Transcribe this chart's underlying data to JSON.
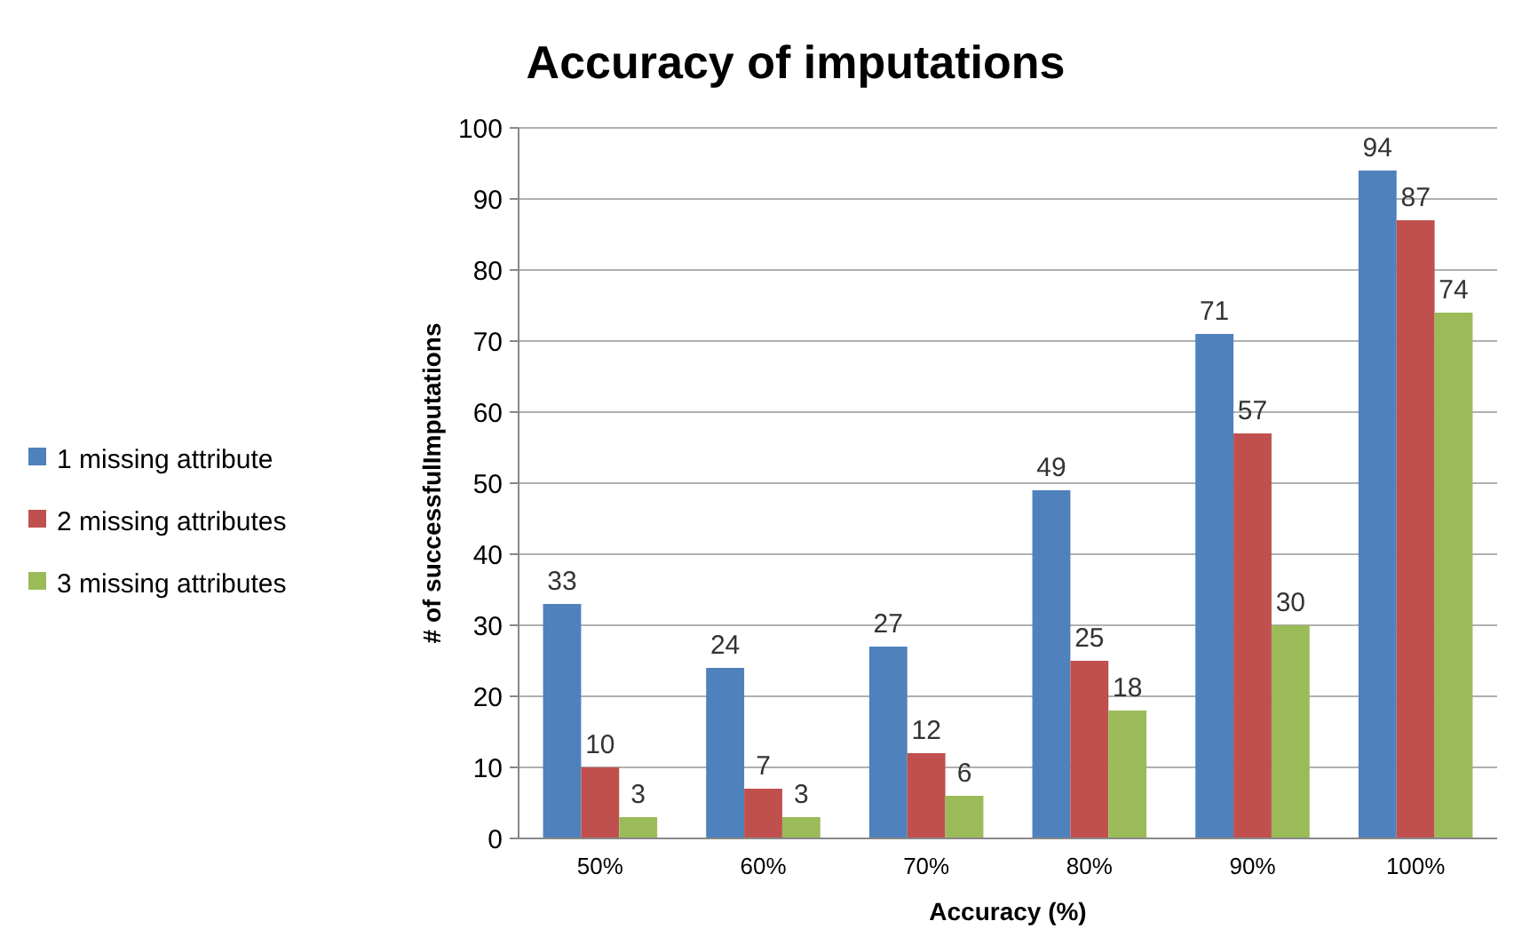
{
  "chart_data": {
    "type": "bar",
    "title": "Accuracy of imputations",
    "xlabel": "Accuracy  (%)",
    "ylabel": "# of successfulImputations",
    "categories": [
      "50%",
      "60%",
      "70%",
      "80%",
      "90%",
      "100%"
    ],
    "series": [
      {
        "name": "1 missing attribute",
        "color": "#4f81bd",
        "values": [
          33,
          24,
          27,
          49,
          71,
          94
        ]
      },
      {
        "name": "2 missing attributes",
        "color": "#c0504d",
        "values": [
          10,
          7,
          12,
          25,
          57,
          87
        ]
      },
      {
        "name": "3 missing attributes",
        "color": "#9bbb59",
        "values": [
          3,
          3,
          6,
          18,
          30,
          74
        ]
      }
    ],
    "ylim": [
      0,
      100
    ],
    "yticks": [
      0,
      10,
      20,
      30,
      40,
      50,
      60,
      70,
      80,
      90,
      100
    ],
    "grid": "y",
    "legend": "left",
    "data_labels": true
  }
}
